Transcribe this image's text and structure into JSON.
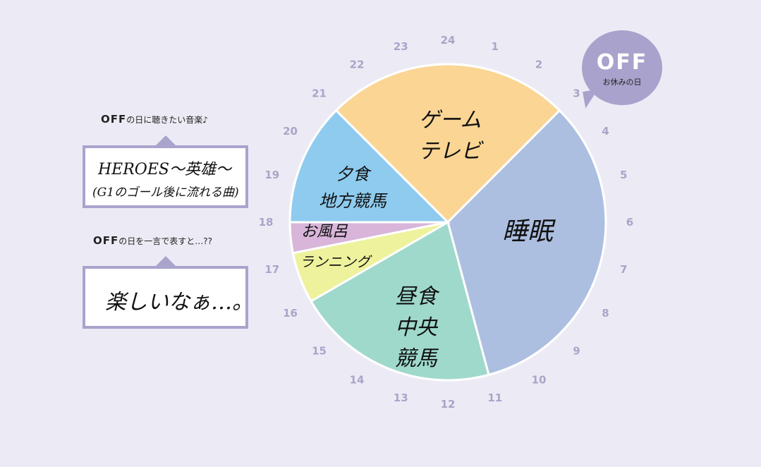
{
  "badge": {
    "title": "OFF",
    "subtitle": "お休みの日"
  },
  "music": {
    "caption_bold": "OFF",
    "caption": "の日に聴きたい音楽♪",
    "line1": "HEROES～英雄～",
    "line2": "(G1のゴール後に流れる曲)"
  },
  "oneword": {
    "caption_bold": "OFF",
    "caption": "の日を一言で表すと…??",
    "text": "楽しいなぁ…。"
  },
  "colors": {
    "background": "#ecebf5",
    "accent": "#a9a4cc"
  },
  "chart_data": {
    "type": "pie",
    "title": "",
    "axis": "24-hour clock, 24 at top, clockwise",
    "hour_labels": [
      "24",
      "1",
      "2",
      "3",
      "4",
      "5",
      "6",
      "7",
      "8",
      "9",
      "10",
      "11",
      "12",
      "13",
      "14",
      "15",
      "16",
      "17",
      "18",
      "19",
      "20",
      "21",
      "22",
      "23"
    ],
    "slices": [
      {
        "labels": [
          "ゲーム",
          "テレビ"
        ],
        "start": 21,
        "end": 3,
        "color": "#fad594"
      },
      {
        "labels": [
          "睡眠"
        ],
        "start": 3,
        "end": 11,
        "color": "#adbfe0"
      },
      {
        "labels": [
          "昼食",
          "中央",
          "競馬"
        ],
        "start": 11,
        "end": 16,
        "color": "#9fd9cc"
      },
      {
        "labels": [
          "ランニング"
        ],
        "start": 16,
        "end": 17.25,
        "color": "#eef29c"
      },
      {
        "labels": [
          "お風呂"
        ],
        "start": 17.25,
        "end": 18,
        "color": "#d8b5d9"
      },
      {
        "labels": [
          "夕食",
          "地方競馬"
        ],
        "start": 18,
        "end": 21,
        "color": "#8ecbee"
      }
    ]
  }
}
